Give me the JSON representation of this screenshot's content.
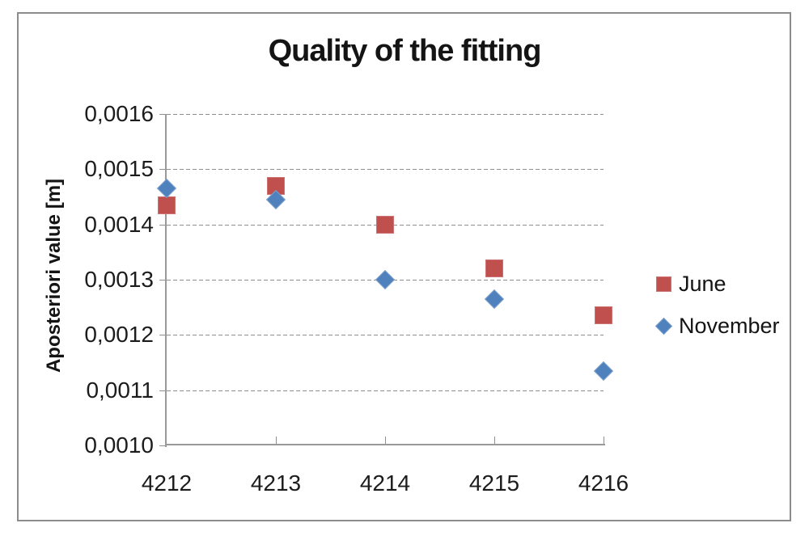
{
  "chart_data": {
    "type": "scatter",
    "title": "Quality of the fitting",
    "xlabel": "",
    "ylabel": "Aposteriori value [m]",
    "x": [
      4212,
      4213,
      4214,
      4215,
      4216
    ],
    "x_tick_labels": [
      "4212",
      "4213",
      "4214",
      "4215",
      "4216"
    ],
    "y_tick_labels": [
      "0,0016",
      "0,0015",
      "0,0014",
      "0,0013",
      "0,0012",
      "0,0011",
      "0,0010"
    ],
    "xlim": [
      4212,
      4216
    ],
    "ylim": [
      0.001,
      0.0016
    ],
    "y_tick_step": 0.0001,
    "grid": "horizontal-dashed",
    "legend_position": "right",
    "decimal_separator": ",",
    "series": [
      {
        "name": "June",
        "marker": "square",
        "color": "#C0504D",
        "border_color": "#CD7371",
        "values": [
          0.001435,
          0.00147,
          0.0014,
          0.00132,
          0.001235
        ]
      },
      {
        "name": "November",
        "marker": "diamond",
        "color": "#4F81BD",
        "border_color": "#7BA0CD",
        "values": [
          0.001465,
          0.001445,
          0.0013,
          0.001265,
          0.001135
        ]
      }
    ]
  },
  "frame": {
    "border_color": "#8C8C8C",
    "background": "#FFFFFF"
  }
}
